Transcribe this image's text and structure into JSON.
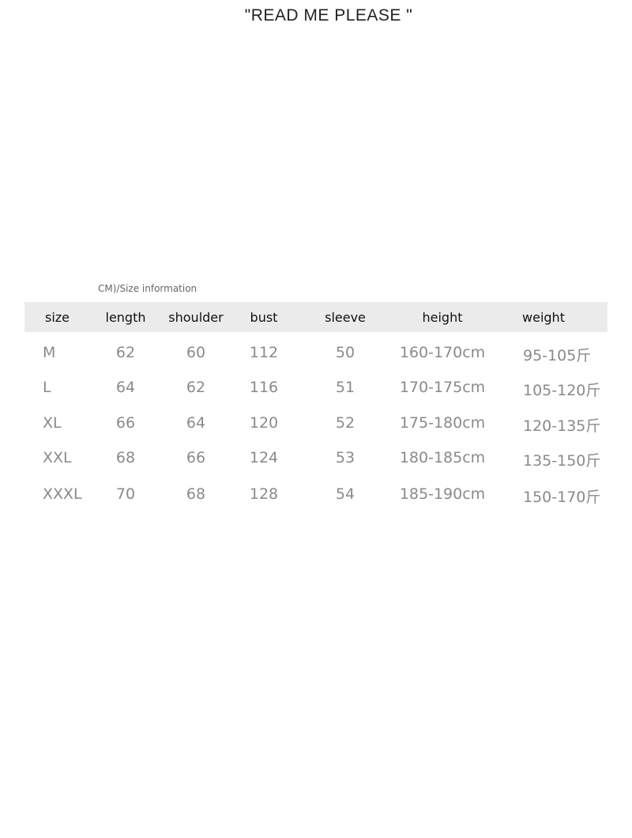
{
  "title": "\"READ  ME  PLEASE \"",
  "caption": "CM)/Size information",
  "headers": [
    "size",
    "length",
    "shoulder",
    "bust",
    "sleeve",
    "height",
    "weight"
  ],
  "rows": [
    [
      "M",
      "62",
      "60",
      "112",
      "50",
      "160-170cm",
      "95-105斤"
    ],
    [
      "L",
      "64",
      "62",
      "116",
      "51",
      "170-175cm",
      "105-120斤"
    ],
    [
      "XL",
      "66",
      "64",
      "120",
      "52",
      "175-180cm",
      "120-135斤"
    ],
    [
      "XXL",
      "68",
      "66",
      "124",
      "53",
      "180-185cm",
      "135-150斤"
    ],
    [
      "XXXL",
      "70",
      "68",
      "128",
      "54",
      "185-190cm",
      "150-170斤"
    ]
  ]
}
